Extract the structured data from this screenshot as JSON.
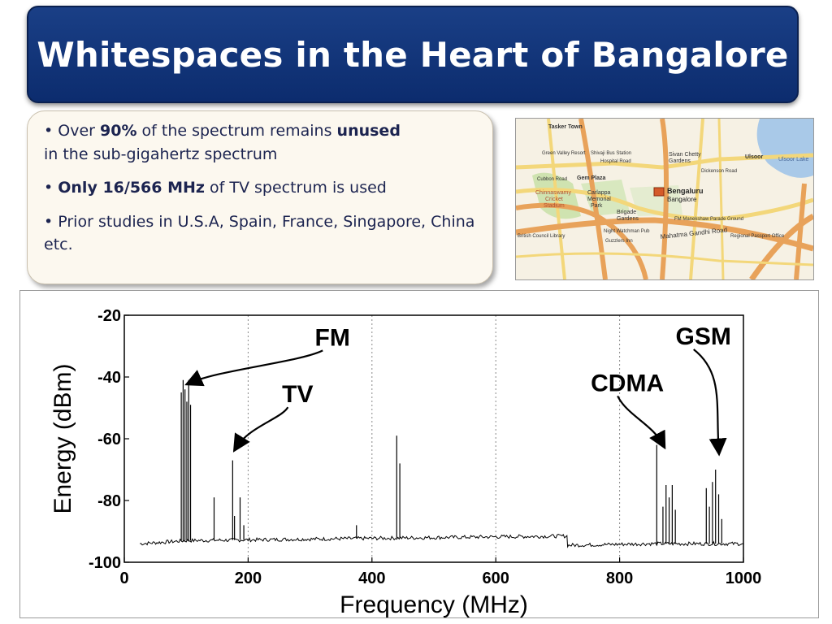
{
  "title": "Whitespaces in the Heart of Bangalore",
  "bullets": {
    "b1_pre": "Over ",
    "b1_bold1": "90%",
    "b1_mid": " of the spectrum remains ",
    "b1_bold2": "unused",
    "b1_post": "in the sub-gigahertz  spectrum",
    "b2_bold": "Only 16/566 MHz",
    "b2_post": " of TV spectrum is used",
    "b3": "Prior studies in U.S.A, Spain, France, Singapore, China etc."
  },
  "map": {
    "labels": {
      "tasker": "Tasker Town",
      "bengaluru": "Bengaluru",
      "bangalore": "Bangalore",
      "ulsoor": "Ulsoor",
      "ulsoor_lake": "Ulsoor Lake",
      "sivan": "Sivan Chetty",
      "gardens": "Gardens",
      "gem": "Gem Plaza",
      "cubbon": "Cubbon Road",
      "chinnaswamy": "Chinnaswamy",
      "cricket": "Cricket",
      "stadium": "Stadium",
      "carlappa": "Carlappa",
      "memorial": "Memorial",
      "park": "Park",
      "brigade": "Brigade",
      "brigade_gardens": "Gardens",
      "mg_road": "Mahatma Gandhi Road",
      "fm_parade": "FM Manekshaw Parade Ground",
      "shivaji": "Shivaji Bus Station",
      "hospital": "Hospital Road",
      "dickenson": "Dickenson Road",
      "night": "Night Watchman Pub",
      "guzzlers": "Guzzlers Inn",
      "regional": "Regional Passport Office",
      "green_valley": "Green Valley Resort",
      "british": "British Council Library"
    },
    "colors": {
      "background": "#f6f1e4",
      "major_road": "#e8a25a",
      "minor_road": "#f3d77a",
      "water": "#a9c9e8",
      "park": "#cfe3b0"
    }
  },
  "chart_data": {
    "type": "line",
    "xlabel": "Frequency (MHz)",
    "ylabel": "Energy (dBm)",
    "xlim": [
      0,
      1000
    ],
    "ylim": [
      -100,
      -20
    ],
    "xticks": [
      0,
      200,
      400,
      600,
      800,
      1000
    ],
    "yticks": [
      -20,
      -40,
      -60,
      -80,
      -100
    ],
    "xtick_labels": [
      "0",
      "200",
      "400",
      "600",
      "800",
      "1000"
    ],
    "ytick_labels": [
      "-20",
      "-40",
      "-60",
      "-80",
      "-100"
    ],
    "grid": "vertical dotted",
    "noise_floor": [
      [
        25,
        -94
      ],
      [
        100,
        -93
      ],
      [
        300,
        -92.5
      ],
      [
        500,
        -92
      ],
      [
        715,
        -91.5
      ],
      [
        716,
        -94.5
      ],
      [
        850,
        -94
      ],
      [
        1000,
        -94
      ]
    ],
    "peaks": [
      [
        92,
        -45
      ],
      [
        95,
        -41
      ],
      [
        98,
        -44
      ],
      [
        101,
        -48
      ],
      [
        104,
        -41
      ],
      [
        107,
        -49
      ],
      [
        145,
        -79
      ],
      [
        175,
        -67
      ],
      [
        178,
        -85
      ],
      [
        187,
        -79
      ],
      [
        193,
        -88
      ],
      [
        375,
        -88
      ],
      [
        440,
        -59
      ],
      [
        445,
        -68
      ],
      [
        860,
        -62
      ],
      [
        870,
        -82
      ],
      [
        875,
        -75
      ],
      [
        880,
        -79
      ],
      [
        885,
        -75
      ],
      [
        890,
        -83
      ],
      [
        940,
        -76
      ],
      [
        945,
        -82
      ],
      [
        950,
        -74
      ],
      [
        955,
        -70
      ],
      [
        960,
        -78
      ],
      [
        965,
        -86
      ]
    ],
    "annotations": [
      {
        "text": "FM",
        "x": 100,
        "y": -43
      },
      {
        "text": "TV",
        "x": 175,
        "y": -64
      },
      {
        "text": "CDMA",
        "x": 865,
        "y": -63
      },
      {
        "text": "GSM",
        "x": 955,
        "y": -65
      }
    ],
    "colors": {
      "line": "#000000"
    }
  }
}
